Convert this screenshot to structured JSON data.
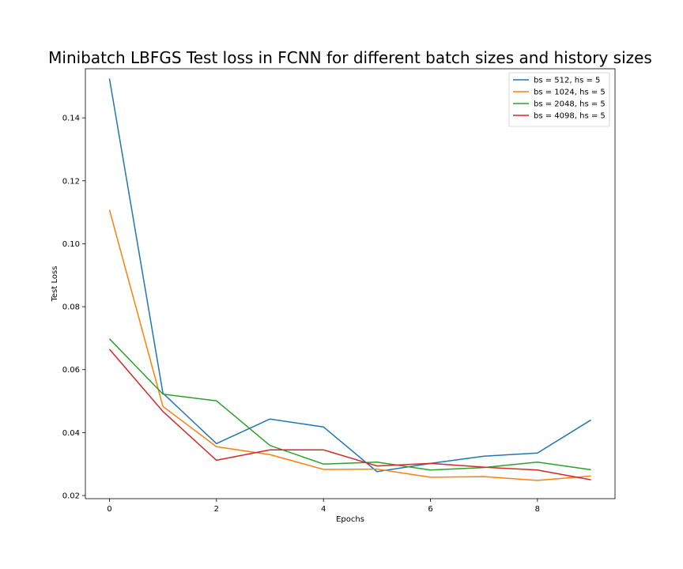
{
  "chart_data": {
    "type": "line",
    "title": "Minibatch LBFGS Test loss in FCNN for different batch sizes and history sizes",
    "xlabel": "Epochs",
    "ylabel": "Test Loss",
    "x": [
      0,
      1,
      2,
      3,
      4,
      5,
      6,
      7,
      8,
      9
    ],
    "xlim": [
      -0.45,
      9.45
    ],
    "ylim": [
      0.019,
      0.1556
    ],
    "xticks": [
      0,
      2,
      4,
      6,
      8
    ],
    "xtick_labels": [
      "0",
      "2",
      "4",
      "6",
      "8"
    ],
    "yticks": [
      0.02,
      0.04,
      0.06,
      0.08,
      0.1,
      0.12,
      0.14
    ],
    "ytick_labels": [
      "0.02",
      "0.04",
      "0.06",
      "0.08",
      "0.10",
      "0.12",
      "0.14"
    ],
    "grid": false,
    "legend_position": "top-right",
    "series": [
      {
        "name": "bs = 512, hs = 5",
        "color": "#1f77b4",
        "values": [
          0.1525,
          0.0525,
          0.0365,
          0.0443,
          0.0418,
          0.0276,
          0.0302,
          0.0325,
          0.0335,
          0.044
        ]
      },
      {
        "name": "bs = 1024, hs = 5",
        "color": "#ff7f0e",
        "values": [
          0.1108,
          0.0483,
          0.0355,
          0.033,
          0.0283,
          0.0284,
          0.0258,
          0.026,
          0.0248,
          0.0262
        ]
      },
      {
        "name": "bs = 2048, hs = 5",
        "color": "#2ca02c",
        "values": [
          0.0698,
          0.0522,
          0.0501,
          0.0359,
          0.03,
          0.0306,
          0.0281,
          0.0289,
          0.0306,
          0.0282
        ]
      },
      {
        "name": "bs = 4098, hs = 5",
        "color": "#d62728",
        "values": [
          0.0665,
          0.0467,
          0.0312,
          0.0345,
          0.0345,
          0.0294,
          0.0302,
          0.029,
          0.0281,
          0.025
        ]
      }
    ]
  }
}
